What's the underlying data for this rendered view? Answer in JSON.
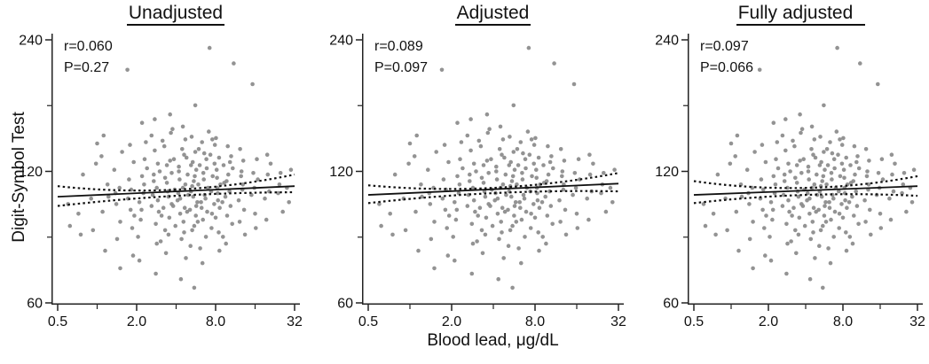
{
  "chart_data": {
    "type": "scatter",
    "xlabel": "Blood lead, μg/dL",
    "ylabel": "Digit-Symbol Test",
    "x_scale": {
      "type": "log",
      "min": 0.5,
      "max": 32,
      "major_ticks": [
        0.5,
        2,
        8,
        32
      ],
      "major_tick_labels": [
        "0.5",
        "2.0",
        "8.0",
        "32"
      ],
      "minor_ticks": [
        1,
        4,
        16
      ]
    },
    "y_scale": {
      "type": "log",
      "min": 60,
      "max": 240,
      "major_ticks": [
        240,
        120,
        60
      ],
      "major_tick_labels": [
        "240",
        "120",
        "60"
      ],
      "minor_ticks": [
        84.85,
        169.71
      ]
    },
    "point_color": "#8a8a8a",
    "line_color": "#111111",
    "axis_color": "#222222",
    "grid": false,
    "panels": [
      {
        "title": "Unadjusted",
        "r_label": "r=0.060",
        "p_label": "P=0.27",
        "fit_line": {
          "x": [
            0.5,
            32
          ],
          "y": [
            105,
            111
          ]
        },
        "ci_upper": {
          "x": [
            0.5,
            4,
            32
          ],
          "y": [
            111,
            109,
            118
          ]
        },
        "ci_lower": {
          "x": [
            0.5,
            4,
            32
          ],
          "y": [
            100,
            105.5,
            107.5
          ]
        }
      },
      {
        "title": "Adjusted",
        "r_label": "r=0.089",
        "p_label": "P=0.097",
        "fit_line": {
          "x": [
            0.5,
            32
          ],
          "y": [
            106,
            112.5
          ]
        },
        "ci_upper": {
          "x": [
            0.5,
            4,
            32
          ],
          "y": [
            111.5,
            110,
            119
          ]
        },
        "ci_lower": {
          "x": [
            0.5,
            4,
            32
          ],
          "y": [
            101.5,
            107,
            108
          ]
        }
      },
      {
        "title": "Fully adjusted",
        "r_label": "r=0.097",
        "p_label": "P=0.066",
        "fit_line": {
          "x": [
            0.5,
            32
          ],
          "y": [
            106,
            111
          ]
        },
        "ci_upper": {
          "x": [
            0.5,
            4,
            32
          ],
          "y": [
            114,
            110,
            117
          ]
        },
        "ci_lower": {
          "x": [
            0.5,
            4,
            32
          ],
          "y": [
            101.5,
            106,
            105.5
          ]
        }
      }
    ],
    "points": [
      [
        0.6,
        101
      ],
      [
        0.62,
        90
      ],
      [
        0.72,
        96
      ],
      [
        0.78,
        118
      ],
      [
        0.75,
        86
      ],
      [
        0.9,
        104
      ],
      [
        0.98,
        125
      ],
      [
        0.93,
        88
      ],
      [
        1.0,
        139
      ],
      [
        1.1,
        97
      ],
      [
        1.2,
        112
      ],
      [
        1.08,
        130
      ],
      [
        1.15,
        79
      ],
      [
        1.22,
        105
      ],
      [
        1.12,
        145
      ],
      [
        1.4,
        101
      ],
      [
        1.5,
        92
      ],
      [
        1.35,
        121
      ],
      [
        1.48,
        110
      ],
      [
        1.42,
        84
      ],
      [
        1.55,
        133
      ],
      [
        1.38,
        107
      ],
      [
        1.5,
        72
      ],
      [
        1.7,
        205
      ],
      [
        1.8,
        98
      ],
      [
        1.75,
        115
      ],
      [
        1.85,
        89
      ],
      [
        1.9,
        126
      ],
      [
        1.72,
        104
      ],
      [
        1.88,
        77
      ],
      [
        1.78,
        138
      ],
      [
        1.82,
        109
      ],
      [
        1.92,
        95
      ],
      [
        2.1,
        102
      ],
      [
        2.2,
        117
      ],
      [
        2.15,
        93
      ],
      [
        2.3,
        128
      ],
      [
        2.05,
        85
      ],
      [
        2.25,
        107
      ],
      [
        2.35,
        140
      ],
      [
        2.1,
        75
      ],
      [
        2.28,
        112
      ],
      [
        2.18,
        98
      ],
      [
        2.4,
        122
      ],
      [
        2.2,
        155
      ],
      [
        2.6,
        100
      ],
      [
        2.7,
        114
      ],
      [
        2.8,
        91
      ],
      [
        2.9,
        125
      ],
      [
        2.65,
        106
      ],
      [
        2.85,
        82
      ],
      [
        2.75,
        134
      ],
      [
        2.95,
        97
      ],
      [
        2.7,
        118
      ],
      [
        2.6,
        145
      ],
      [
        2.9,
        103
      ],
      [
        2.8,
        70
      ],
      [
        2.75,
        158
      ],
      [
        2.85,
        110
      ],
      [
        3.0,
        120
      ],
      [
        3.1,
        95
      ],
      [
        3.15,
        141
      ],
      [
        3.05,
        83
      ],
      [
        3.2,
        99
      ],
      [
        3.4,
        113
      ],
      [
        3.3,
        88
      ],
      [
        3.6,
        127
      ],
      [
        3.5,
        105
      ],
      [
        3.25,
        137
      ],
      [
        3.55,
        94
      ],
      [
        3.7,
        119
      ],
      [
        3.35,
        78
      ],
      [
        3.65,
        147
      ],
      [
        3.45,
        108
      ],
      [
        3.5,
        86
      ],
      [
        3.6,
        162
      ],
      [
        3.3,
        116
      ],
      [
        3.7,
        101
      ],
      [
        3.4,
        124
      ],
      [
        3.9,
        109
      ],
      [
        3.85,
        128
      ],
      [
        3.95,
        90
      ],
      [
        3.8,
        100
      ],
      [
        3.75,
        150
      ],
      [
        4.1,
        103
      ],
      [
        4.3,
        96
      ],
      [
        4.2,
        120
      ],
      [
        4.5,
        110
      ],
      [
        4.4,
        84
      ],
      [
        4.6,
        131
      ],
      [
        4.15,
        107
      ],
      [
        4.55,
        92
      ],
      [
        4.7,
        142
      ],
      [
        4.25,
        115
      ],
      [
        4.65,
        99
      ],
      [
        4.35,
        68
      ],
      [
        4.5,
        152
      ],
      [
        4.2,
        123
      ],
      [
        4.6,
        87
      ],
      [
        4.45,
        135
      ],
      [
        4.3,
        104
      ],
      [
        4.7,
        112
      ],
      [
        4.9,
        118
      ],
      [
        4.85,
        97
      ],
      [
        4.95,
        106
      ],
      [
        4.8,
        129
      ],
      [
        4.75,
        76
      ],
      [
        5.1,
        98
      ],
      [
        5.3,
        111
      ],
      [
        5.2,
        124
      ],
      [
        5.5,
        90
      ],
      [
        5.4,
        105
      ],
      [
        5.6,
        133
      ],
      [
        5.15,
        81
      ],
      [
        5.55,
        117
      ],
      [
        5.7,
        100
      ],
      [
        5.25,
        144
      ],
      [
        5.65,
        95
      ],
      [
        5.35,
        126
      ],
      [
        5.5,
        65
      ],
      [
        5.2,
        108
      ],
      [
        5.6,
        170
      ],
      [
        5.45,
        114
      ],
      [
        5.3,
        88
      ],
      [
        5.7,
        121
      ],
      [
        5.9,
        112
      ],
      [
        5.85,
        92
      ],
      [
        5.95,
        135
      ],
      [
        5.8,
        102
      ],
      [
        6.05,
        124
      ],
      [
        6.1,
        80
      ],
      [
        6.2,
        102
      ],
      [
        6.5,
        115
      ],
      [
        6.4,
        93
      ],
      [
        6.8,
        128
      ],
      [
        6.6,
        106
      ],
      [
        6.3,
        140
      ],
      [
        6.9,
        97
      ],
      [
        6.45,
        119
      ],
      [
        6.75,
        85
      ],
      [
        7.0,
        110
      ],
      [
        6.55,
        132
      ],
      [
        6.35,
        74
      ],
      [
        7.1,
        148
      ],
      [
        6.7,
        104
      ],
      [
        6.85,
        122
      ],
      [
        6.25,
        99
      ],
      [
        7.2,
        230
      ],
      [
        7.4,
        108
      ],
      [
        7.5,
        96
      ],
      [
        7.3,
        131
      ],
      [
        7.6,
        117
      ],
      [
        7.45,
        89
      ],
      [
        7.55,
        142
      ],
      [
        7.8,
        101
      ],
      [
        8.2,
        116
      ],
      [
        8.0,
        94
      ],
      [
        8.5,
        129
      ],
      [
        8.3,
        107
      ],
      [
        7.9,
        138
      ],
      [
        8.6,
        99
      ],
      [
        8.15,
        121
      ],
      [
        8.45,
        87
      ],
      [
        8.7,
        112
      ],
      [
        8.05,
        143
      ],
      [
        8.35,
        103
      ],
      [
        8.55,
        79
      ],
      [
        7.85,
        125
      ],
      [
        8.25,
        110
      ],
      [
        9.0,
        102
      ],
      [
        9.2,
        124
      ],
      [
        9.1,
        85
      ],
      [
        9.3,
        113
      ],
      [
        9.5,
        105
      ],
      [
        10,
        118
      ],
      [
        9.8,
        95
      ],
      [
        10.5,
        130
      ],
      [
        10.2,
        108
      ],
      [
        9.6,
        82
      ],
      [
        10.8,
        122
      ],
      [
        9.9,
        137
      ],
      [
        10.4,
        100
      ],
      [
        10.7,
        91
      ],
      [
        9.7,
        114
      ],
      [
        10.3,
        126
      ],
      [
        11,
        212
      ],
      [
        12,
        103
      ],
      [
        12.5,
        117
      ],
      [
        12.2,
        92
      ],
      [
        13,
        127
      ],
      [
        12.8,
        109
      ],
      [
        12.3,
        135
      ],
      [
        13.2,
        98
      ],
      [
        12.6,
        120
      ],
      [
        13.4,
        86
      ],
      [
        12.9,
        112
      ],
      [
        15,
        106
      ],
      [
        15.5,
        119
      ],
      [
        16,
        96
      ],
      [
        16.5,
        128
      ],
      [
        15.8,
        110
      ],
      [
        16.2,
        89
      ],
      [
        15.3,
        190
      ],
      [
        16.8,
        115
      ],
      [
        19,
        104
      ],
      [
        20,
        118
      ],
      [
        19.5,
        93
      ],
      [
        21,
        125
      ],
      [
        20.5,
        108
      ],
      [
        19.8,
        131
      ],
      [
        24,
        107
      ],
      [
        25,
        119
      ],
      [
        26,
        97
      ],
      [
        24.5,
        112
      ],
      [
        28,
        110
      ],
      [
        29,
        102
      ],
      [
        30,
        121
      ]
    ]
  }
}
